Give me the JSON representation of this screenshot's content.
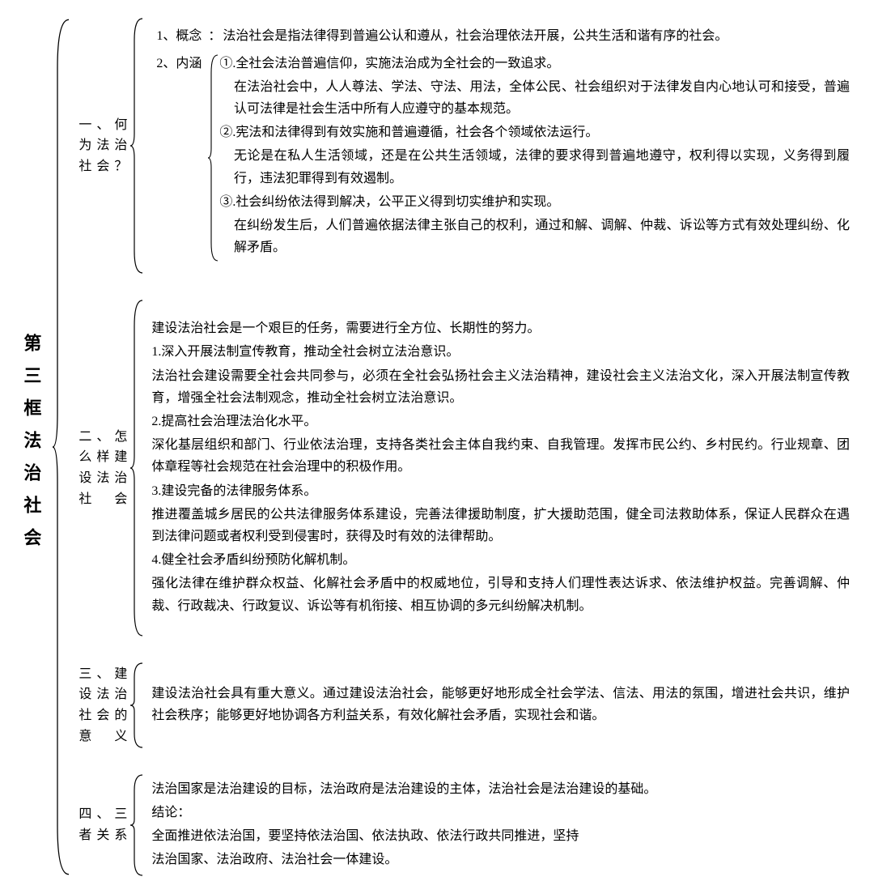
{
  "colors": {
    "background": "#ffffff",
    "text": "#000000",
    "brace": "#000000"
  },
  "typography": {
    "root_title_fontsize": 22,
    "body_fontsize": 16,
    "font_family": "SimSun"
  },
  "root": {
    "title": "第三框法治社会"
  },
  "sections": {
    "s1": {
      "label": "一、何为法治社会？",
      "sub1_label": "1、概念",
      "sub1_colon": "：",
      "sub1_text": "法治社会是指法律得到普遍公认和遵从，社会治理依法开展，公共生活和谐有序的社会。",
      "sub2_label": "2、内涵",
      "sub2_p1": "①.全社会法治普遍信仰，实施法治成为全社会的一致追求。",
      "sub2_p1a": "在法治社会中，人人尊法、学法、守法、用法，全体公民、社会组织对于法律发自内心地认可和接受，普遍认可法律是社会生活中所有人应遵守的基本规范。",
      "sub2_p2": "②.宪法和法律得到有效实施和普遍遵循，社会各个领域依法运行。",
      "sub2_p2a": "无论是在私人生活领域，还是在公共生活领域，法律的要求得到普遍地遵守，权利得以实现，义务得到履行，违法犯罪得到有效遏制。",
      "sub2_p3": "③.社会纠纷依法得到解决，公平正义得到切实维护和实现。",
      "sub2_p3a": "在纠纷发生后，人们普遍依据法律主张自己的权利，通过和解、调解、仲裁、诉讼等方式有效处理纠纷、化解矛盾。"
    },
    "s2": {
      "label": "二、怎么样建设法治社会",
      "intro": "建设法治社会是一个艰巨的任务，需要进行全方位、长期性的努力。",
      "p1": "1.深入开展法制宣传教育，推动全社会树立法治意识。",
      "p1a": "法治社会建设需要全社会共同参与，必须在全社会弘扬社会主义法治精神，建设社会主义法治文化，深入开展法制宣传教育，增强全社会法制观念，推动全社会树立法治意识。",
      "p2": "2.提高社会治理法治化水平。",
      "p2a": "深化基层组织和部门、行业依法治理，支持各类社会主体自我约束、自我管理。发挥市民公约、乡村民约。行业规章、团体章程等社会规范在社会治理中的积极作用。",
      "p3": "3.建设完备的法律服务体系。",
      "p3a": "推进覆盖城乡居民的公共法律服务体系建设，完善法律援助制度，扩大援助范围，健全司法救助体系，保证人民群众在遇到法律问题或者权利受到侵害时，获得及时有效的法律帮助。",
      "p4": "4.健全社会矛盾纠纷预防化解机制。",
      "p4a": "强化法律在维护群众权益、化解社会矛盾中的权威地位，引导和支持人们理性表达诉求、依法维护权益。完善调解、仲裁、行政裁决、行政复议、诉讼等有机衔接、相互协调的多元纠纷解决机制。"
    },
    "s3": {
      "label": "三、建设法治社会的意义",
      "text": "建设法治社会具有重大意义。通过建设法治社会，能够更好地形成全社会学法、信法、用法的氛围，增进社会共识，维护社会秩序；能够更好地协调各方利益关系，有效化解社会矛盾，实现社会和谐。"
    },
    "s4": {
      "label": "四、三者关系",
      "p1": "法治国家是法治建设的目标，法治政府是法治建设的主体，法治社会是法治建设的基础。",
      "p2": "结论：",
      "p3": "全面推进依法治国，要坚持依法治国、依法执政、依法行政共同推进，坚持",
      "p4": "法治国家、法治政府、法治社会一体建设。"
    }
  }
}
